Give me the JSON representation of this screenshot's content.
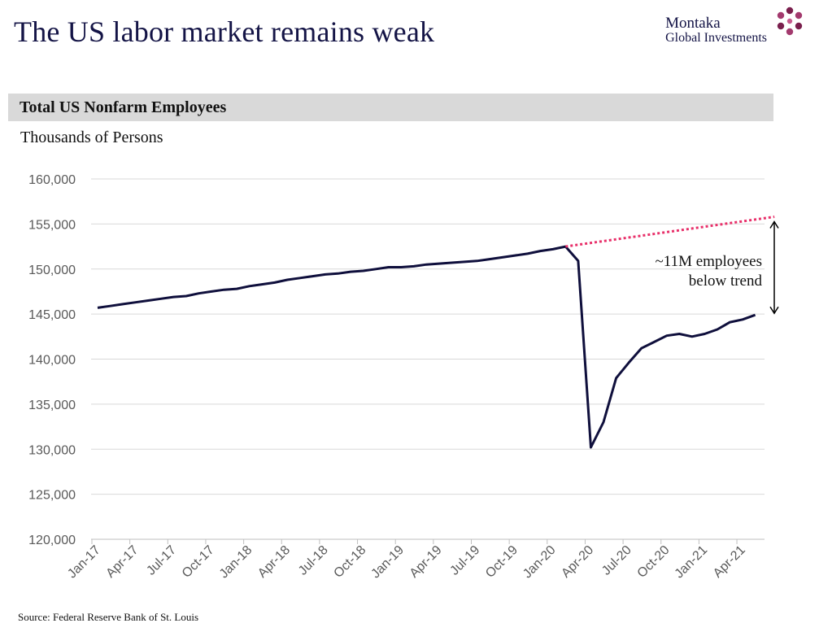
{
  "header": {
    "title": "The US labor market remains weak",
    "brand_line1": "Montaka",
    "brand_line2": "Global Investments"
  },
  "section": {
    "title": "Total US Nonfarm Employees",
    "subtitle": "Thousands of Persons"
  },
  "footer": {
    "source": "Source: Federal Reserve Bank of St. Louis"
  },
  "colors": {
    "line": "#0f0f3c",
    "trend": "#e8306a",
    "brand": "#7a1f4d"
  },
  "chart_data": {
    "type": "line",
    "title": "Total US Nonfarm Employees",
    "ylabel": "Thousands of Persons",
    "ylim": [
      120000,
      160000
    ],
    "yticks": [
      120000,
      125000,
      130000,
      135000,
      140000,
      145000,
      150000,
      155000,
      160000
    ],
    "ytick_labels": [
      "120,000",
      "125,000",
      "130,000",
      "135,000",
      "140,000",
      "145,000",
      "150,000",
      "155,000",
      "160,000"
    ],
    "xtick_labels": [
      "Jan-17",
      "Apr-17",
      "Jul-17",
      "Oct-17",
      "Jan-18",
      "Apr-18",
      "Jul-18",
      "Oct-18",
      "Jan-19",
      "Apr-19",
      "Jul-19",
      "Oct-19",
      "Jan-20",
      "Apr-20",
      "Jul-20",
      "Oct-20",
      "Jan-21",
      "Apr-21"
    ],
    "series": [
      {
        "name": "Total Nonfarm Employees",
        "start": "Jan-17",
        "values": [
          145700,
          145900,
          146100,
          146300,
          146500,
          146700,
          146900,
          147000,
          147300,
          147500,
          147700,
          147800,
          148100,
          148300,
          148500,
          148800,
          149000,
          149200,
          149400,
          149500,
          149700,
          149800,
          150000,
          150200,
          150200,
          150300,
          150500,
          150600,
          150700,
          150800,
          150900,
          151100,
          151300,
          151500,
          151700,
          152000,
          152200,
          152500,
          150900,
          130200,
          133000,
          137900,
          139600,
          141200,
          141900,
          142600,
          142800,
          142500,
          142800,
          143300,
          144100,
          144400,
          144900
        ]
      },
      {
        "name": "Pre-COVID trend",
        "style": "dotted",
        "start_label": "Feb-20",
        "end_label": "Jun-21",
        "values": [
          152500,
          155800
        ]
      }
    ],
    "annotations": [
      {
        "text_line1": "~11M employees",
        "text_line2": "below trend"
      }
    ]
  }
}
